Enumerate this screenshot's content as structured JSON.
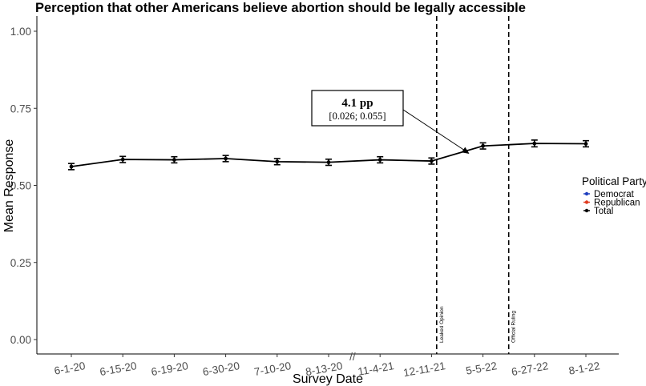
{
  "chart_data": {
    "type": "line",
    "title": "Perception that other Americans believe abortion should be legally accessible",
    "xlabel": "Survey Date",
    "ylabel": "Mean Response",
    "ylim": [
      0,
      1
    ],
    "y_ticks": [
      "0.00",
      "0.25",
      "0.50",
      "0.75",
      "1.00"
    ],
    "y_tick_values": [
      0,
      0.25,
      0.5,
      0.75,
      1.0
    ],
    "categories": [
      "6-1-20",
      "6-15-20",
      "6-19-20",
      "6-30-20",
      "7-10-20",
      "8-13-20",
      "11-4-21",
      "12-11-21",
      "5-5-22",
      "6-27-22",
      "8-1-22"
    ],
    "axis_break_symbol": "//",
    "series": [
      {
        "name": "Total",
        "color": "#000000",
        "values": [
          0.561,
          0.584,
          0.583,
          0.587,
          0.577,
          0.575,
          0.583,
          0.579,
          0.628,
          0.636,
          0.635
        ],
        "error_low": [
          0.551,
          0.574,
          0.573,
          0.577,
          0.567,
          0.565,
          0.573,
          0.569,
          0.618,
          0.625,
          0.625
        ],
        "error_high": [
          0.571,
          0.594,
          0.593,
          0.597,
          0.587,
          0.585,
          0.593,
          0.589,
          0.638,
          0.647,
          0.645
        ]
      }
    ],
    "vertical_markers": [
      {
        "label": "Leaked Opinion",
        "between": [
          "12-11-21",
          "5-5-22"
        ],
        "position_fraction": 0.1
      },
      {
        "label": "Official Ruling",
        "between": [
          "5-5-22",
          "6-27-22"
        ],
        "position_fraction": 0.5
      }
    ],
    "annotation": {
      "main": "4.1 pp",
      "sub": "[0.026; 0.055]",
      "points_to_category_fraction": 7.75,
      "points_to_value": 0.6
    },
    "legend": {
      "title": "Political Party",
      "placement": "right",
      "entries": [
        {
          "label": "Democrat",
          "color": "#1f3fbf"
        },
        {
          "label": "Republican",
          "color": "#e03a1e"
        },
        {
          "label": "Total",
          "color": "#000000"
        }
      ]
    },
    "grid": false
  }
}
